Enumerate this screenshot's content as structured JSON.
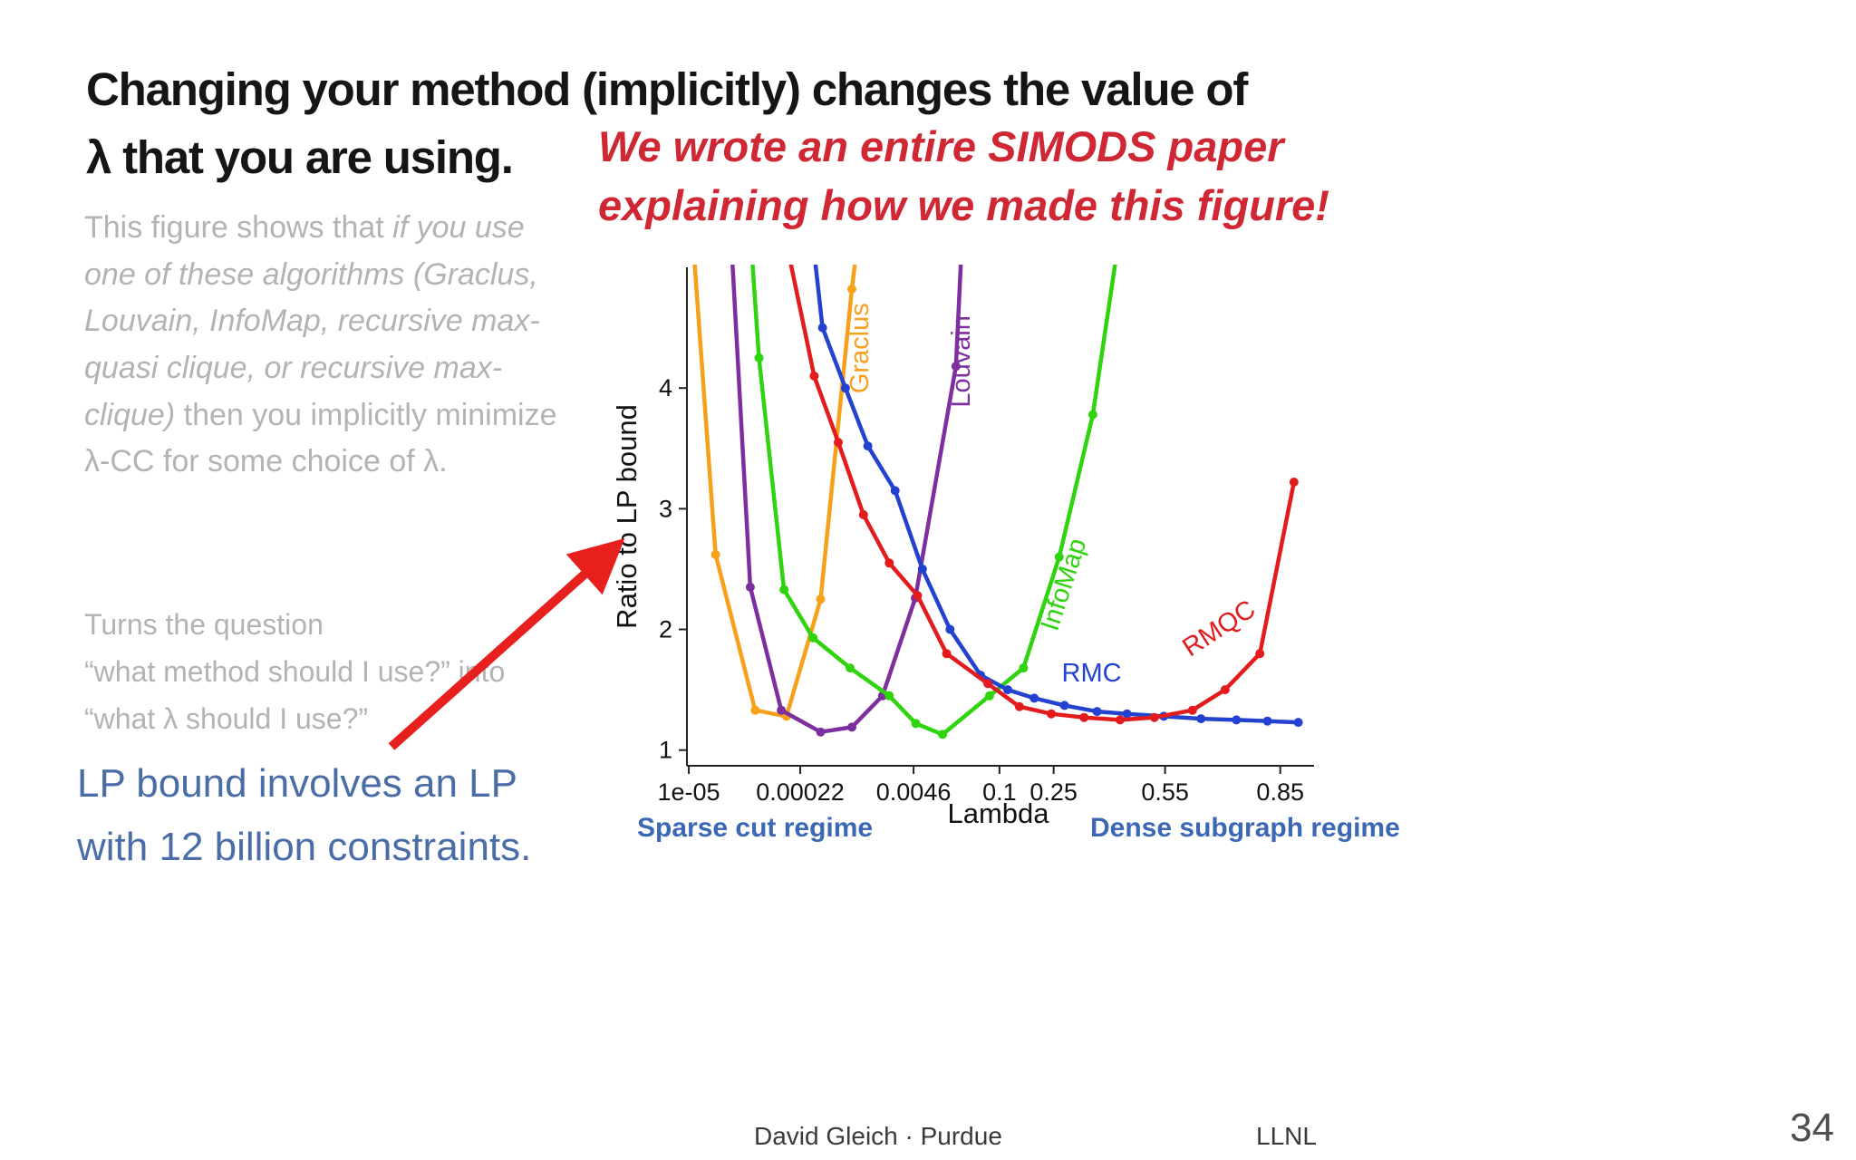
{
  "slide": {
    "title": {
      "line1": "Changing your method (implicitly) changes the value of",
      "line2": "λ that you are using."
    },
    "red_note": {
      "line1": "We wrote an entire SIMODS paper",
      "line2": "explaining how we made this figure!"
    },
    "description": {
      "normal1": "This figure shows that ",
      "italic": "if you use one of these algorithms (Graclus, Louvain, InfoMap, recursive max-quasi clique, or recursive max-clique)",
      "normal2": " then you implicitly minimize λ-CC for some choice of λ."
    },
    "question": {
      "line1": "Turns the question",
      "line2": "“what method should I use?” into",
      "line3": "“what λ should I use?”"
    },
    "lp_note": {
      "line1": "LP bound involves an LP",
      "line2": "with 12 billion constraints."
    },
    "regimes": {
      "left": "Sparse cut regime",
      "right": "Dense subgraph regime"
    },
    "footer": {
      "credit": "David Gleich · Purdue",
      "venue": "LLNL",
      "slide_number": "34"
    },
    "colors": {
      "title": "#151515",
      "body-gray": "#b3b3b3",
      "lp-blue": "#4a6da7",
      "red-note": "#cf2734",
      "regime-blue": "#3b67b5",
      "arrow": "#e8201d",
      "footer": "#3a3a3a"
    }
  },
  "chart_data": {
    "type": "line",
    "title": "",
    "xlabel": "Lambda",
    "ylabel": "Ratio to LP bound",
    "ylim": [
      0.87,
      5.0
    ],
    "y_ticks": [
      1,
      2,
      3,
      4
    ],
    "x_ticks": [
      {
        "label": "1e-05",
        "value": 1e-05,
        "pos": 0.003
      },
      {
        "label": "0.00022",
        "value": 0.00022,
        "pos": 0.182
      },
      {
        "label": "0.0046",
        "value": 0.0046,
        "pos": 0.364
      },
      {
        "label": "0.1",
        "value": 0.1,
        "pos": 0.502
      },
      {
        "label": "0.25",
        "value": 0.25,
        "pos": 0.589
      },
      {
        "label": "0.55",
        "value": 0.55,
        "pos": 0.768
      },
      {
        "label": "0.85",
        "value": 0.85,
        "pos": 0.953
      }
    ],
    "series": [
      {
        "name": "Graclus",
        "color": "#f6a01b",
        "label": {
          "u": 0.291,
          "v": 4.33,
          "rot": -90
        },
        "points": [
          [
            1.1e-05,
            5.3
          ],
          [
            2.1e-05,
            2.62
          ],
          [
            6.3e-05,
            1.33
          ],
          [
            0.00015,
            1.28
          ],
          [
            0.00038,
            2.25
          ],
          [
            0.00088,
            4.82
          ],
          [
            0.0011,
            5.4
          ]
        ]
      },
      {
        "name": "Louvain",
        "color": "#7d2f9f",
        "label": {
          "u": 0.454,
          "v": 4.22,
          "rot": -90
        },
        "points": [
          [
            3.2e-05,
            5.3
          ],
          [
            5.5e-05,
            2.35
          ],
          [
            0.00013,
            1.33
          ],
          [
            0.00038,
            1.15
          ],
          [
            0.00088,
            1.19
          ],
          [
            0.002,
            1.45
          ],
          [
            0.0049,
            2.26
          ],
          [
            0.021,
            4.18
          ],
          [
            0.027,
            5.4
          ]
        ]
      },
      {
        "name": "InfoMap",
        "color": "#2fd30e",
        "label": {
          "u": 0.618,
          "v": 2.35,
          "rot": -72
        },
        "points": [
          [
            5.5e-05,
            5.3
          ],
          [
            7e-05,
            4.25
          ],
          [
            0.00014,
            2.33
          ],
          [
            0.00031,
            1.93
          ],
          [
            0.00084,
            1.68
          ],
          [
            0.0024,
            1.45
          ],
          [
            0.005,
            1.22
          ],
          [
            0.013,
            1.13
          ],
          [
            0.07,
            1.45
          ],
          [
            0.15,
            1.68
          ],
          [
            0.26,
            2.6
          ],
          [
            0.33,
            3.78
          ],
          [
            0.4,
            5.3
          ]
        ]
      },
      {
        "name": "RMC",
        "color": "#2442d0",
        "label": {
          "u": 0.65,
          "v": 1.57,
          "rot": 0
        },
        "points": [
          [
            0.0003,
            5.3
          ],
          [
            0.0004,
            4.5
          ],
          [
            0.00074,
            4.0
          ],
          [
            0.00135,
            3.52
          ],
          [
            0.0028,
            3.15
          ],
          [
            0.0063,
            2.5
          ],
          [
            0.017,
            2.0
          ],
          [
            0.051,
            1.62
          ],
          [
            0.115,
            1.5
          ],
          [
            0.18,
            1.43
          ],
          [
            0.27,
            1.37
          ],
          [
            0.34,
            1.32
          ],
          [
            0.42,
            1.3
          ],
          [
            0.545,
            1.28
          ],
          [
            0.63,
            1.26
          ],
          [
            0.72,
            1.25
          ],
          [
            0.81,
            1.24
          ],
          [
            0.91,
            1.23
          ]
        ]
      },
      {
        "name": "RMQC",
        "color": "#e31b1c",
        "label": {
          "u": 0.862,
          "v": 1.95,
          "rot": -33
        },
        "points": [
          [
            0.00014,
            5.3
          ],
          [
            0.00032,
            4.1
          ],
          [
            0.00061,
            3.55
          ],
          [
            0.0012,
            2.95
          ],
          [
            0.0024,
            2.55
          ],
          [
            0.0053,
            2.28
          ],
          [
            0.015,
            1.8
          ],
          [
            0.066,
            1.55
          ],
          [
            0.14,
            1.36
          ],
          [
            0.24,
            1.3
          ],
          [
            0.31,
            1.27
          ],
          [
            0.4,
            1.25
          ],
          [
            0.51,
            1.27
          ],
          [
            0.61,
            1.33
          ],
          [
            0.69,
            1.5
          ],
          [
            0.787,
            1.8
          ],
          [
            0.895,
            3.22
          ]
        ]
      }
    ]
  }
}
